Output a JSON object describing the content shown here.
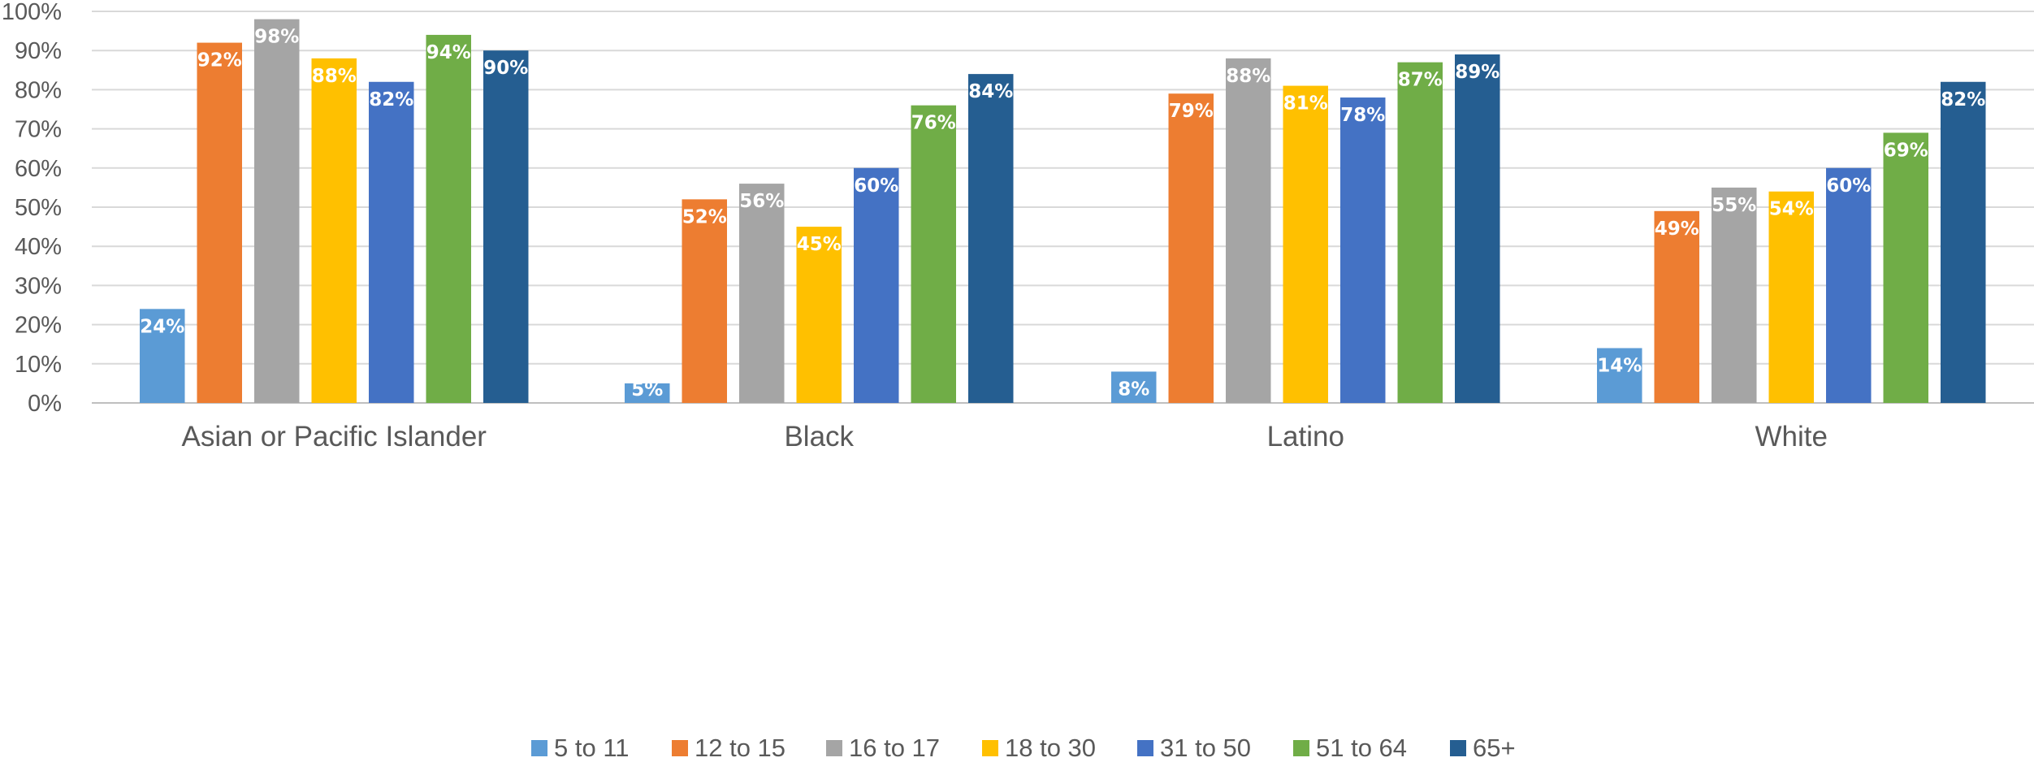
{
  "chart_data": {
    "type": "bar",
    "title": "",
    "xlabel": "",
    "ylabel": "",
    "ylim": [
      0,
      100
    ],
    "y_ticks": [
      "0%",
      "10%",
      "20%",
      "30%",
      "40%",
      "50%",
      "60%",
      "70%",
      "80%",
      "90%",
      "100%"
    ],
    "grid": true,
    "legend_position": "bottom",
    "categories": [
      "Asian or Pacific Islander",
      "Black",
      "Latino",
      "White"
    ],
    "series": [
      {
        "name": "5 to 11",
        "color": "#5B9BD5",
        "values": [
          24,
          5,
          8,
          14
        ],
        "labels": [
          "24%",
          "5%",
          "8%",
          "14%"
        ]
      },
      {
        "name": "12 to 15",
        "color": "#ED7D31",
        "values": [
          92,
          52,
          79,
          49
        ],
        "labels": [
          "92%",
          "52%",
          "79%",
          "49%"
        ]
      },
      {
        "name": "16 to 17",
        "color": "#A5A5A5",
        "values": [
          98,
          56,
          88,
          55
        ],
        "labels": [
          "98%",
          "56%",
          "88%",
          "55%"
        ]
      },
      {
        "name": "18 to 30",
        "color": "#FFC000",
        "values": [
          88,
          45,
          81,
          54
        ],
        "labels": [
          "88%",
          "45%",
          "81%",
          "54%"
        ]
      },
      {
        "name": "31 to 50",
        "color": "#4472C4",
        "values": [
          82,
          60,
          78,
          60
        ],
        "labels": [
          "82%",
          "60%",
          "78%",
          "60%"
        ]
      },
      {
        "name": "51 to 64",
        "color": "#70AD47",
        "values": [
          94,
          76,
          87,
          69
        ],
        "labels": [
          "94%",
          "76%",
          "87%",
          "69%"
        ]
      },
      {
        "name": "65+",
        "color": "#255E91",
        "values": [
          90,
          84,
          89,
          82
        ],
        "labels": [
          "90%",
          "84%",
          "89%",
          "82%"
        ]
      }
    ]
  }
}
